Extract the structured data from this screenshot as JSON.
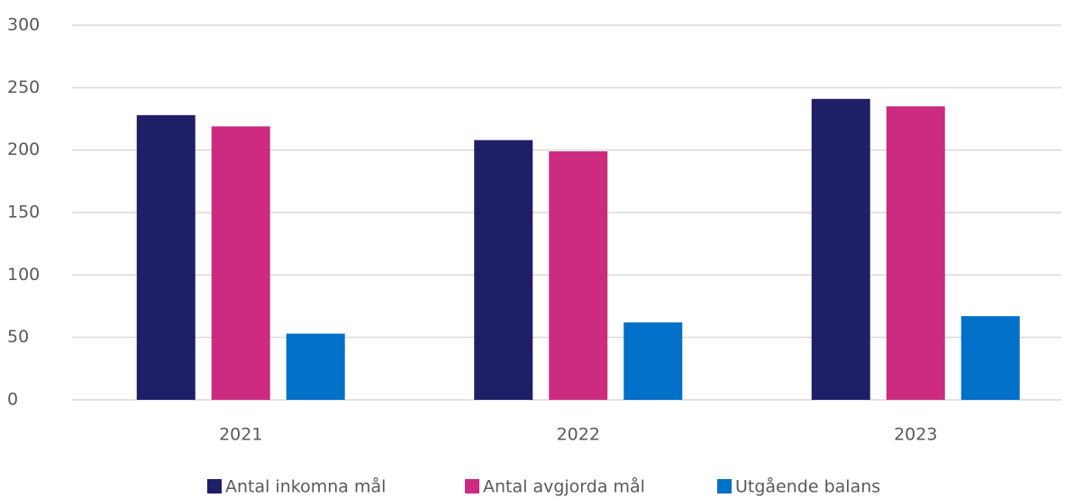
{
  "chart_data": {
    "type": "bar",
    "categories": [
      "2021",
      "2022",
      "2023"
    ],
    "series": [
      {
        "name": "Antal inkomna mål",
        "color": "#1e1f66",
        "values": [
          228,
          208,
          241
        ]
      },
      {
        "name": "Antal avgjorda mål",
        "color": "#cc2b7f",
        "values": [
          219,
          199,
          235
        ]
      },
      {
        "name": "Utgående balans",
        "color": "#0070c8",
        "values": [
          53,
          62,
          67
        ]
      }
    ],
    "ylim": [
      0,
      300
    ],
    "yticks": [
      0,
      50,
      100,
      150,
      200,
      250,
      300
    ],
    "grid": true,
    "legend": "bottom"
  }
}
